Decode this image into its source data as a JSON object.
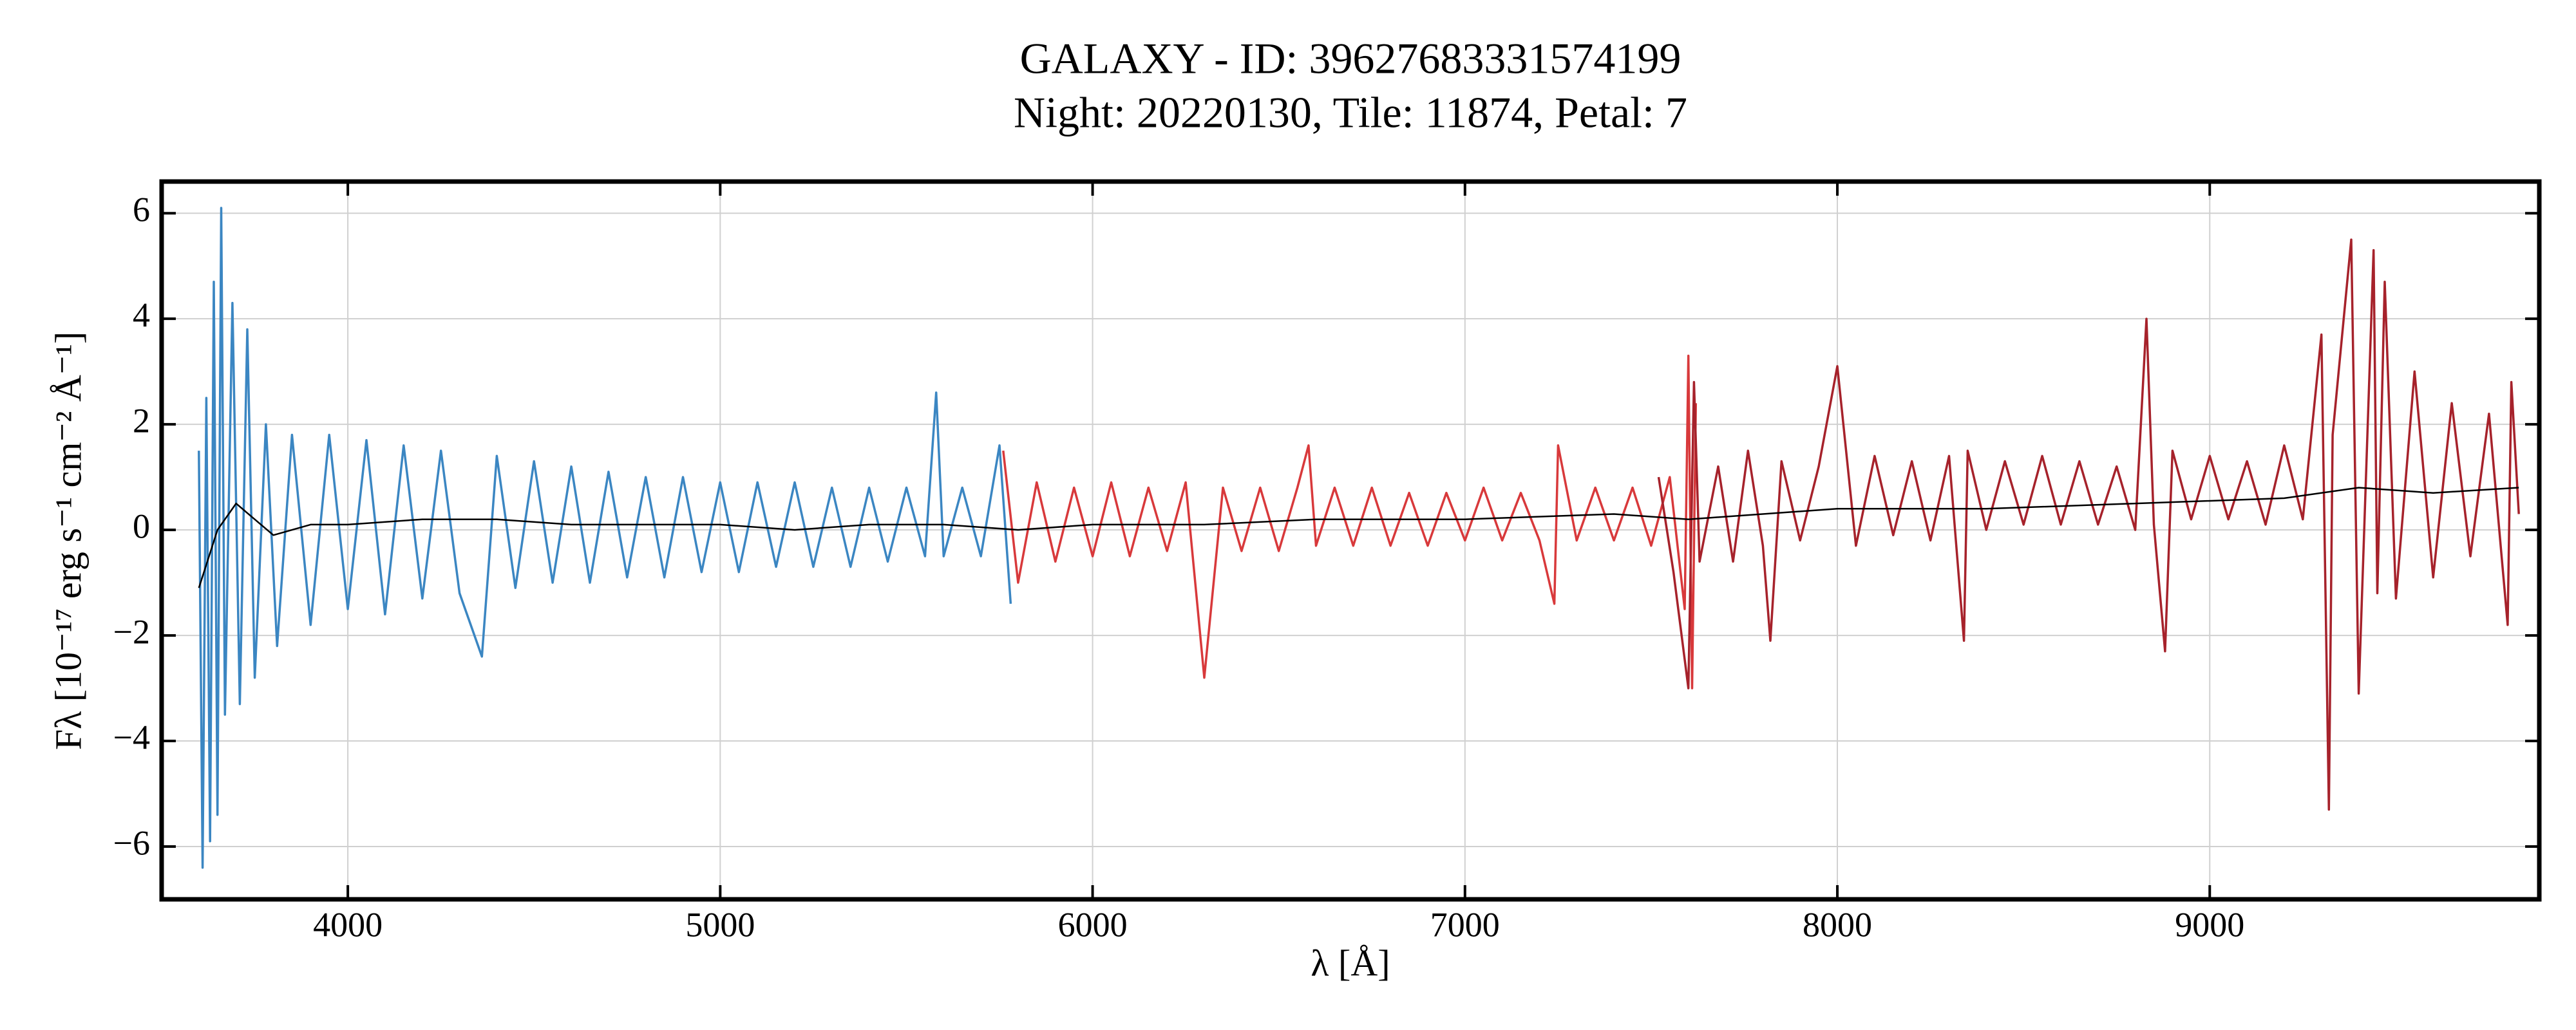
{
  "chart_data": {
    "type": "line",
    "title": "GALAXY - ID: 39627683331574199",
    "subtitle": "Night: 20220130, Tile: 11874, Petal: 7",
    "x_label": "λ [Å]",
    "y_label": "Fλ [10⁻¹⁷ erg s⁻¹ cm⁻² Å⁻¹]",
    "xlim": [
      3500,
      9885
    ],
    "ylim": [
      -7,
      6.6
    ],
    "xticks": [
      4000,
      5000,
      6000,
      7000,
      8000,
      9000
    ],
    "yticks": [
      {
        "value": -6,
        "label": "−6"
      },
      {
        "value": -4,
        "label": "−4"
      },
      {
        "value": -2,
        "label": "−2"
      },
      0,
      2,
      4,
      6
    ],
    "grid": true,
    "series": [
      {
        "color": "#3b86c2",
        "x": [
          3600,
          3610,
          3620,
          3630,
          3640,
          3650,
          3660,
          3670,
          3690,
          3710,
          3730,
          3750,
          3780,
          3810,
          3850,
          3900,
          3950,
          4000,
          4050,
          4100,
          4150,
          4200,
          4250,
          4300,
          4360,
          4400,
          4450,
          4500,
          4550,
          4600,
          4650,
          4700,
          4750,
          4800,
          4850,
          4900,
          4950,
          5000,
          5050,
          5100,
          5150,
          5200,
          5250,
          5300,
          5350,
          5400,
          5450,
          5500,
          5550,
          5580,
          5600,
          5650,
          5700,
          5750,
          5780
        ],
        "values": [
          1.5,
          -6.4,
          2.5,
          -5.9,
          4.7,
          -5.4,
          6.1,
          -3.5,
          4.3,
          -3.3,
          3.8,
          -2.8,
          2.0,
          -2.2,
          1.8,
          -1.8,
          1.8,
          -1.5,
          1.7,
          -1.6,
          1.6,
          -1.3,
          1.5,
          -1.2,
          -2.4,
          1.4,
          -1.1,
          1.3,
          -1.0,
          1.2,
          -1.0,
          1.1,
          -0.9,
          1.0,
          -0.9,
          1.0,
          -0.8,
          0.9,
          -0.8,
          0.9,
          -0.7,
          0.9,
          -0.7,
          0.8,
          -0.7,
          0.8,
          -0.6,
          0.8,
          -0.5,
          2.6,
          -0.5,
          0.8,
          -0.5,
          1.6,
          -1.4
        ]
      },
      {
        "color": "#d8393b",
        "x": [
          5760,
          5800,
          5850,
          5900,
          5950,
          6000,
          6050,
          6100,
          6150,
          6200,
          6250,
          6300,
          6350,
          6400,
          6450,
          6500,
          6550,
          6580,
          6600,
          6650,
          6700,
          6750,
          6800,
          6850,
          6900,
          6950,
          7000,
          7050,
          7100,
          7150,
          7200,
          7240,
          7250,
          7300,
          7350,
          7400,
          7450,
          7500,
          7550,
          7590,
          7600,
          7610,
          7620
        ],
        "values": [
          1.5,
          -1.0,
          0.9,
          -0.6,
          0.8,
          -0.5,
          0.9,
          -0.5,
          0.8,
          -0.4,
          0.9,
          -2.8,
          0.8,
          -0.4,
          0.8,
          -0.4,
          0.8,
          1.6,
          -0.3,
          0.8,
          -0.3,
          0.8,
          -0.3,
          0.7,
          -0.3,
          0.7,
          -0.2,
          0.8,
          -0.2,
          0.7,
          -0.2,
          -1.4,
          1.6,
          -0.2,
          0.8,
          -0.2,
          0.8,
          -0.3,
          1.0,
          -1.5,
          3.3,
          -3.0,
          2.4
        ]
      },
      {
        "color": "#a6222b",
        "x": [
          7520,
          7560,
          7600,
          7615,
          7630,
          7680,
          7720,
          7760,
          7800,
          7820,
          7850,
          7900,
          7950,
          8000,
          8050,
          8100,
          8150,
          8200,
          8250,
          8300,
          8340,
          8350,
          8400,
          8450,
          8500,
          8550,
          8600,
          8650,
          8700,
          8750,
          8800,
          8830,
          8850,
          8880,
          8900,
          8950,
          9000,
          9050,
          9100,
          9150,
          9200,
          9250,
          9300,
          9320,
          9330,
          9380,
          9400,
          9440,
          9450,
          9470,
          9500,
          9550,
          9600,
          9650,
          9700,
          9750,
          9800,
          9810,
          9830
        ],
        "values": [
          1.0,
          -0.8,
          -3.0,
          2.8,
          -0.6,
          1.2,
          -0.6,
          1.5,
          -0.3,
          -2.1,
          1.3,
          -0.2,
          1.2,
          3.1,
          -0.3,
          1.4,
          -0.1,
          1.3,
          -0.2,
          1.4,
          -2.1,
          1.5,
          0.0,
          1.3,
          0.1,
          1.4,
          0.1,
          1.3,
          0.1,
          1.2,
          0.0,
          4.0,
          0.1,
          -2.3,
          1.5,
          0.2,
          1.4,
          0.2,
          1.3,
          0.1,
          1.6,
          0.2,
          3.7,
          -5.3,
          1.8,
          5.5,
          -3.1,
          5.3,
          -1.2,
          4.7,
          -1.3,
          3.0,
          -0.9,
          2.4,
          -0.5,
          2.2,
          -1.8,
          2.8,
          0.3
        ]
      },
      {
        "color": "#000000",
        "x": [
          3600,
          3650,
          3700,
          3800,
          3900,
          4000,
          4200,
          4400,
          4600,
          4800,
          5000,
          5200,
          5400,
          5600,
          5800,
          6000,
          6300,
          6600,
          7000,
          7400,
          7600,
          8000,
          8400,
          8800,
          9200,
          9400,
          9600,
          9830
        ],
        "values": [
          -1.1,
          0.0,
          0.5,
          -0.1,
          0.1,
          0.1,
          0.2,
          0.2,
          0.1,
          0.1,
          0.1,
          0.0,
          0.1,
          0.1,
          0.0,
          0.1,
          0.1,
          0.2,
          0.2,
          0.3,
          0.2,
          0.4,
          0.4,
          0.5,
          0.6,
          0.8,
          0.7,
          0.8
        ]
      }
    ]
  }
}
